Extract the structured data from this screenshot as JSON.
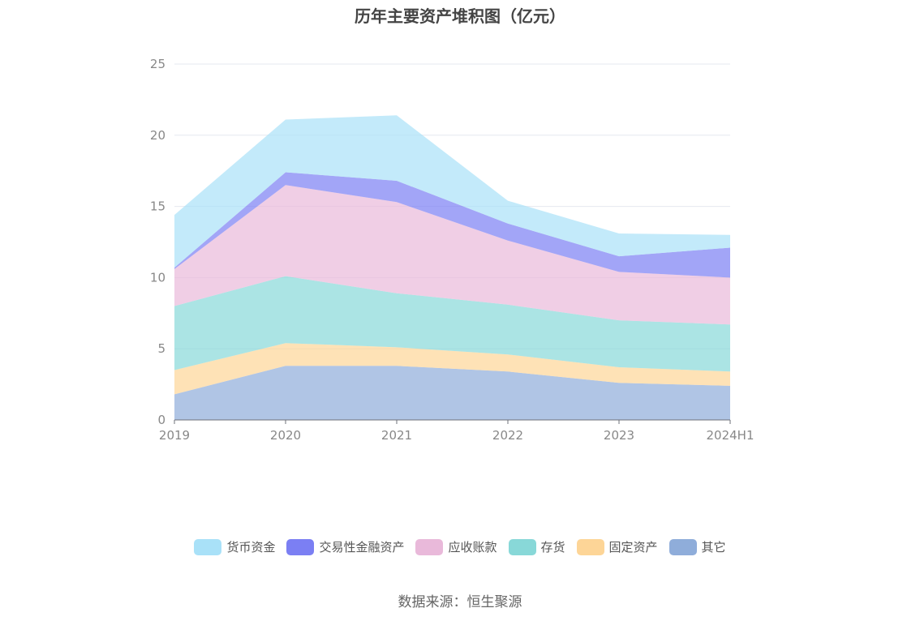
{
  "source": "数据来源：恒生聚源",
  "chart_data": {
    "type": "area",
    "stacked": true,
    "title": "历年主要资产堆积图（亿元）",
    "categories": [
      "2019",
      "2020",
      "2021",
      "2022",
      "2023",
      "2024H1"
    ],
    "y_ticks": [
      "0",
      "5",
      "10",
      "15",
      "20",
      "25"
    ],
    "ylim": [
      0,
      25
    ],
    "grid": true,
    "legend_position": "bottom",
    "series": [
      {
        "name": "其它",
        "color": "#8fadda",
        "values": [
          1.8,
          3.8,
          3.8,
          3.4,
          2.6,
          2.4
        ]
      },
      {
        "name": "固定资产",
        "color": "#fdd597",
        "values": [
          1.7,
          1.6,
          1.3,
          1.2,
          1.1,
          1.0
        ]
      },
      {
        "name": "存货",
        "color": "#88d8d8",
        "values": [
          4.5,
          4.7,
          3.8,
          3.5,
          3.3,
          3.3
        ]
      },
      {
        "name": "应收账款",
        "color": "#e9b9da",
        "values": [
          2.6,
          6.4,
          6.4,
          4.5,
          3.4,
          3.3
        ]
      },
      {
        "name": "交易性金融资产",
        "color": "#7b7ff3",
        "values": [
          0.1,
          0.9,
          1.5,
          1.2,
          1.1,
          2.1
        ]
      },
      {
        "name": "货币资金",
        "color": "#a9e1f8",
        "values": [
          3.7,
          3.7,
          4.6,
          1.6,
          1.6,
          0.9
        ]
      }
    ]
  }
}
